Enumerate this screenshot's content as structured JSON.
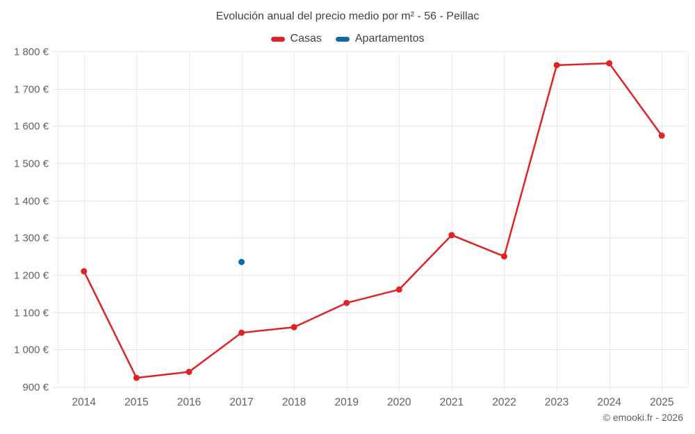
{
  "chart_data": {
    "type": "line",
    "title": "Evolución anual del precio medio por m² - 56 - Peillac",
    "x": [
      "2014",
      "2015",
      "2016",
      "2017",
      "2018",
      "2019",
      "2020",
      "2021",
      "2022",
      "2023",
      "2024",
      "2025"
    ],
    "series": [
      {
        "name": "Casas",
        "color": "#e02126",
        "marker_radius": 4.5,
        "line_width": 2.5,
        "values": [
          1210,
          924,
          940,
          1045,
          1060,
          1125,
          1161,
          1307,
          1250,
          1763,
          1768,
          1574
        ]
      },
      {
        "name": "Apartamentos",
        "color": "#0f69a8",
        "marker_radius": 4.5,
        "line_width": 2.5,
        "values": [
          null,
          null,
          null,
          1235,
          null,
          null,
          null,
          null,
          null,
          null,
          null,
          null
        ]
      }
    ],
    "xlabel": "",
    "ylabel": "",
    "ylim": [
      900,
      1800
    ],
    "ytick_values": [
      900,
      1000,
      1100,
      1200,
      1300,
      1400,
      1500,
      1600,
      1700,
      1800
    ],
    "ytick_labels": [
      "900 €",
      "1 000 €",
      "1 100 €",
      "1 200 €",
      "1 300 €",
      "1 400 €",
      "1 500 €",
      "1 600 €",
      "1 700 €",
      "1 800 €"
    ],
    "grid": true,
    "legend_position": "top",
    "footer": "© emooki.fr - 2026",
    "colors": {
      "background": "#ffffff",
      "grid": "#e9e9e9",
      "axis_text": "#616161",
      "title_text": "#424242",
      "legend_text": "#424242",
      "footer_text": "#5f5f5f"
    }
  }
}
